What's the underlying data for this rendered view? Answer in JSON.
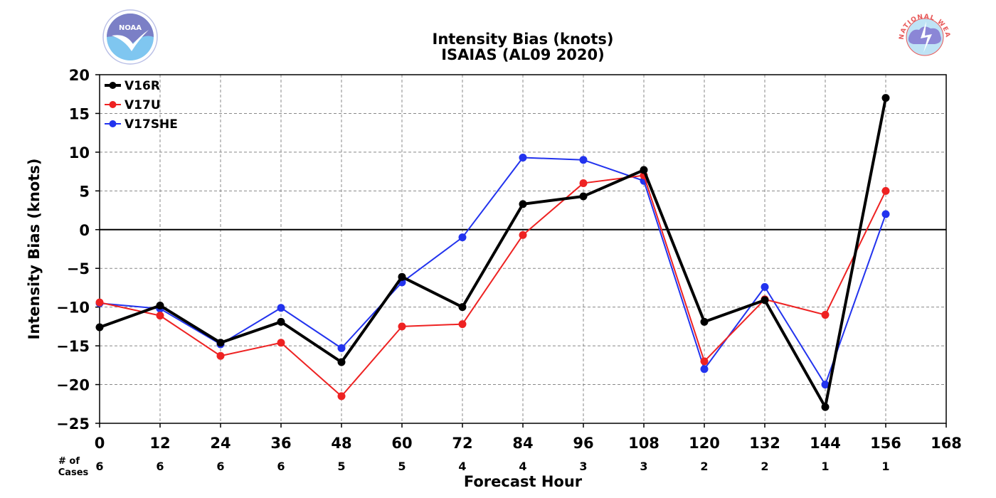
{
  "chart_data": {
    "type": "line",
    "title": "Intensity Bias (knots)",
    "subtitle": "ISAIAS (AL09 2020)",
    "xlabel": "Forecast Hour",
    "ylabel": "Intensity Bias (knots)",
    "xlim": [
      0,
      168
    ],
    "ylim": [
      -25,
      20
    ],
    "xticks": [
      0,
      12,
      24,
      36,
      48,
      60,
      72,
      84,
      96,
      108,
      120,
      132,
      144,
      156,
      168
    ],
    "yticks": [
      20,
      15,
      10,
      5,
      0,
      -5,
      -10,
      -15,
      -20,
      -25
    ],
    "ytick_labels": [
      "20",
      "15",
      "10",
      "5",
      "0",
      "−5",
      "−10",
      "−15",
      "−20",
      "−25"
    ],
    "grid": true,
    "legend_position": "top-left",
    "x": [
      0,
      12,
      24,
      36,
      48,
      60,
      72,
      84,
      96,
      108,
      120,
      132,
      144,
      156
    ],
    "series": [
      {
        "name": "V16R",
        "color": "#000000",
        "values": [
          -12.6,
          -9.8,
          -14.6,
          -11.9,
          -17.1,
          -6.1,
          -10.0,
          3.3,
          4.3,
          7.7,
          -11.9,
          -9.1,
          -22.9,
          17.0
        ]
      },
      {
        "name": "V17U",
        "color": "#ee2222",
        "values": [
          -9.4,
          -11.1,
          -16.3,
          -14.6,
          -21.5,
          -12.5,
          -12.2,
          -0.7,
          6.0,
          7.0,
          -17.0,
          -9.0,
          -11.0,
          5.0
        ]
      },
      {
        "name": "V17SHE",
        "color": "#2233ee",
        "values": [
          -9.5,
          -10.2,
          -14.8,
          -10.1,
          -15.3,
          -6.8,
          -1.0,
          9.3,
          9.0,
          6.3,
          -18.0,
          -7.4,
          -20.0,
          2.0
        ]
      }
    ],
    "cases": {
      "label_line1": "# of",
      "label_line2": "Cases",
      "values": [
        "6",
        "6",
        "6",
        "6",
        "5",
        "5",
        "4",
        "4",
        "3",
        "3",
        "2",
        "2",
        "1",
        "1"
      ]
    }
  },
  "logos": {
    "left": {
      "name": "NOAA",
      "icon": "noaa-seal",
      "text": "NOAA"
    },
    "right": {
      "name": "National Weather Service",
      "icon": "nws-seal",
      "text": "NATIONAL WEATHER SERVICE"
    }
  },
  "colors": {
    "grid": "#888888",
    "zero_line": "#000000",
    "noaa_blue": "#7fc6f0",
    "noaa_purple": "#7b7fc6",
    "nws_red": "#e85a5a"
  }
}
